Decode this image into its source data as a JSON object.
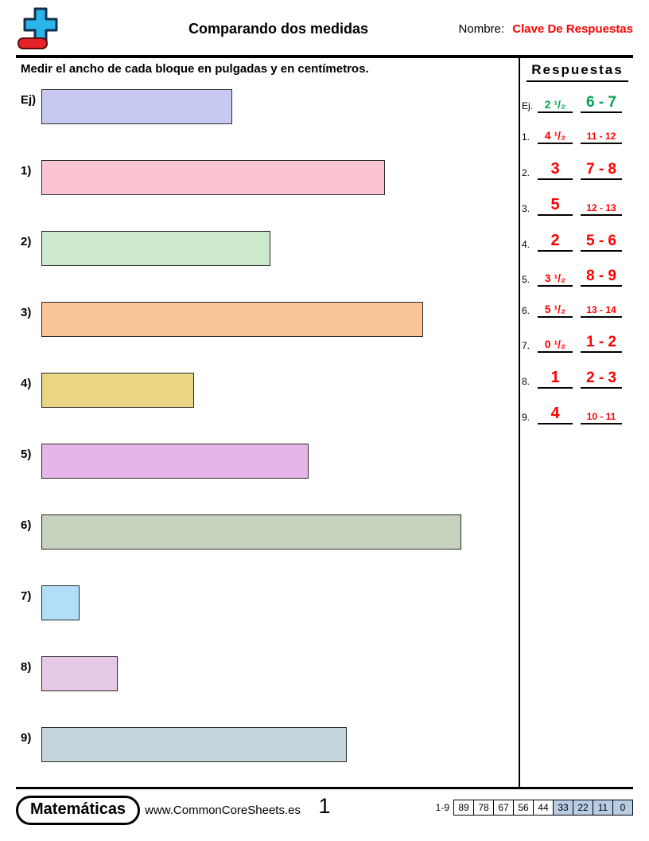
{
  "header": {
    "title": "Comparando dos medidas",
    "name_label": "Nombre:",
    "name_value": "Clave De Respuestas",
    "name_value_color": "#ff0000"
  },
  "instructions": "Medir el ancho de cada bloque en pulgadas y en centímetros.",
  "problems": [
    {
      "label": "Ej)",
      "inches": 2.5,
      "color": "#c7c9f0"
    },
    {
      "label": "1)",
      "inches": 4.5,
      "color": "#fcc3d2"
    },
    {
      "label": "2)",
      "inches": 3,
      "color": "#cde9cd"
    },
    {
      "label": "3)",
      "inches": 5,
      "color": "#f9c597"
    },
    {
      "label": "4)",
      "inches": 2,
      "color": "#ead584"
    },
    {
      "label": "5)",
      "inches": 3.5,
      "color": "#e6b5e8"
    },
    {
      "label": "6)",
      "inches": 5.5,
      "color": "#c6d2bd"
    },
    {
      "label": "7)",
      "inches": 0.5,
      "color": "#b3defa"
    },
    {
      "label": "8)",
      "inches": 1,
      "color": "#e5c9e6"
    },
    {
      "label": "9)",
      "inches": 4,
      "color": "#c2d6dc"
    }
  ],
  "answers": {
    "title": "Respuestas",
    "items": [
      {
        "label": "Ej.",
        "inches": "2 ¹/₂",
        "cm": "6 - 7",
        "color": "#00a651"
      },
      {
        "label": "1.",
        "inches": "4 ¹/₂",
        "cm": "11 - 12",
        "color": "#ff0000"
      },
      {
        "label": "2.",
        "inches": "3",
        "cm": "7 - 8",
        "color": "#ff0000"
      },
      {
        "label": "3.",
        "inches": "5",
        "cm": "12 - 13",
        "color": "#ff0000"
      },
      {
        "label": "4.",
        "inches": "2",
        "cm": "5 - 6",
        "color": "#ff0000"
      },
      {
        "label": "5.",
        "inches": "3 ¹/₂",
        "cm": "8 - 9",
        "color": "#ff0000"
      },
      {
        "label": "6.",
        "inches": "5 ¹/₂",
        "cm": "13 - 14",
        "color": "#ff0000"
      },
      {
        "label": "7.",
        "inches": "0 ¹/₂",
        "cm": "1 - 2",
        "color": "#ff0000"
      },
      {
        "label": "8.",
        "inches": "1",
        "cm": "2 - 3",
        "color": "#ff0000"
      },
      {
        "label": "9.",
        "inches": "4",
        "cm": "10 - 11",
        "color": "#ff0000"
      }
    ]
  },
  "footer": {
    "brand": "Matemáticas",
    "website": "www.CommonCoreSheets.es",
    "page_number": "1",
    "score_range_label": "1-9",
    "highlight_color": "#b8cce4",
    "scores": [
      {
        "value": "89",
        "highlight": false
      },
      {
        "value": "78",
        "highlight": false
      },
      {
        "value": "67",
        "highlight": false
      },
      {
        "value": "56",
        "highlight": false
      },
      {
        "value": "44",
        "highlight": false
      },
      {
        "value": "33",
        "highlight": true
      },
      {
        "value": "22",
        "highlight": true
      },
      {
        "value": "11",
        "highlight": true
      },
      {
        "value": "0",
        "highlight": true
      }
    ]
  }
}
